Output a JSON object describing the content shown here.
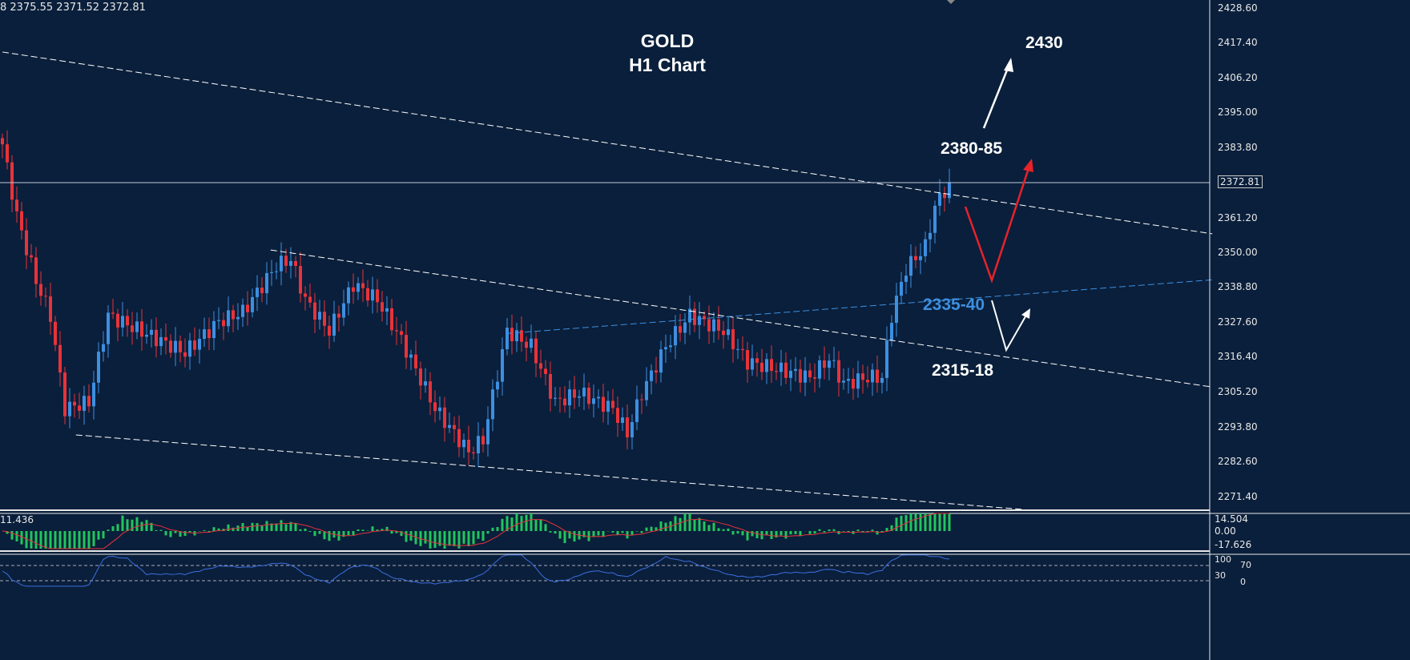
{
  "header": {
    "ohlc": "8 2375.55 2371.52 2372.81",
    "macd_value": "11.436"
  },
  "chart_data": {
    "type": "candlestick",
    "title": "GOLD",
    "subtitle": "H1 Chart",
    "ylim": [
      2271.4,
      2428.6
    ],
    "yticks": [
      "2428.60",
      "2417.40",
      "2406.20",
      "2395.00",
      "2383.80",
      "2372.81",
      "2361.20",
      "2350.00",
      "2338.80",
      "2327.60",
      "2316.40",
      "2305.20",
      "2293.80",
      "2282.60",
      "2271.40"
    ],
    "current_price": 2372.81,
    "close_keypoints": [
      [
        0,
        2385
      ],
      [
        3,
        2362
      ],
      [
        7,
        2341
      ],
      [
        10,
        2330
      ],
      [
        13,
        2300
      ],
      [
        18,
        2302
      ],
      [
        22,
        2330
      ],
      [
        30,
        2324
      ],
      [
        38,
        2318
      ],
      [
        45,
        2328
      ],
      [
        50,
        2331
      ],
      [
        57,
        2346
      ],
      [
        60,
        2348
      ],
      [
        63,
        2335
      ],
      [
        68,
        2325
      ],
      [
        73,
        2340
      ],
      [
        78,
        2335
      ],
      [
        83,
        2322
      ],
      [
        90,
        2300
      ],
      [
        97,
        2286
      ],
      [
        100,
        2290
      ],
      [
        105,
        2325
      ],
      [
        110,
        2320
      ],
      [
        115,
        2302
      ],
      [
        120,
        2305
      ],
      [
        127,
        2300
      ],
      [
        130,
        2292
      ],
      [
        133,
        2305
      ],
      [
        138,
        2320
      ],
      [
        143,
        2330
      ],
      [
        150,
        2325
      ],
      [
        155,
        2315
      ],
      [
        163,
        2312
      ],
      [
        168,
        2310
      ],
      [
        172,
        2316
      ],
      [
        175,
        2308
      ],
      [
        180,
        2310
      ],
      [
        183,
        2310
      ],
      [
        185,
        2330
      ],
      [
        188,
        2345
      ],
      [
        192,
        2352
      ],
      [
        194,
        2365
      ],
      [
        197,
        2372.81
      ]
    ],
    "trendlines": [
      {
        "name": "upper-resistance",
        "color": "#ffffff",
        "points": [
          [
            0,
            2414.7
          ],
          [
            251.7,
            2356.2
          ]
        ]
      },
      {
        "name": "channel-top",
        "color": "#ffffff",
        "points": [
          [
            55.8,
            2351.0
          ],
          [
            251.7,
            2306.9
          ]
        ]
      },
      {
        "name": "channel-bottom",
        "color": "#ffffff",
        "points": [
          [
            15.3,
            2291.5
          ],
          [
            212.5,
            2267.5
          ]
        ]
      },
      {
        "name": "support-blue",
        "color": "#3d8fe0",
        "points": [
          [
            104.7,
            2324.1
          ],
          [
            251.7,
            2341.4
          ]
        ]
      }
    ],
    "annotations": [
      {
        "text": "2430",
        "color": "#ffffff"
      },
      {
        "text": "2380-85",
        "color": "#ffffff"
      },
      {
        "text": "2335-40",
        "color": "#3d8fe0"
      },
      {
        "text": "2315-18",
        "color": "#ffffff"
      }
    ],
    "macd": {
      "ticks": [
        "14.504",
        "0.00",
        "-17.626"
      ]
    },
    "rsi": {
      "ticks": [
        "100",
        "70",
        "30",
        "0"
      ]
    },
    "colors": {
      "up": "#3d8fe0",
      "down": "#e8333a",
      "bg": "#0a1f3b"
    }
  }
}
